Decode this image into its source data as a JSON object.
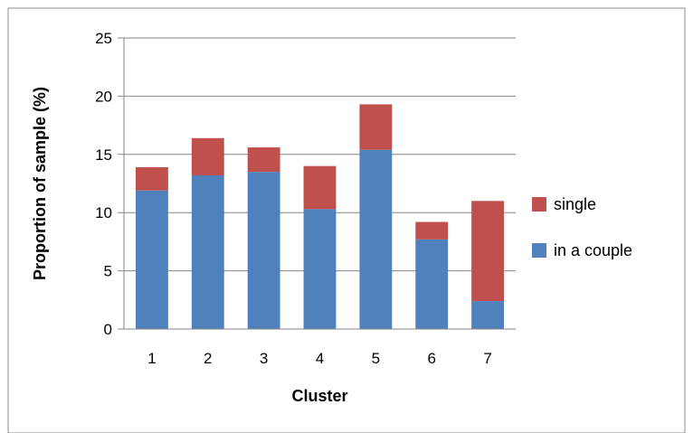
{
  "chart_data": {
    "type": "bar",
    "stacked": true,
    "title": "",
    "xlabel": "Cluster",
    "ylabel": "Proportion of sample (%)",
    "categories": [
      "1",
      "2",
      "3",
      "4",
      "5",
      "6",
      "7"
    ],
    "ylim": [
      0,
      25
    ],
    "yticks": [
      "0",
      "5",
      "10",
      "15",
      "20",
      "25"
    ],
    "grid": true,
    "legend_position": "right",
    "series": [
      {
        "name": "in a couple",
        "color": "#4f81bd",
        "values": [
          11.9,
          13.2,
          13.5,
          10.3,
          15.4,
          7.7,
          2.4
        ]
      },
      {
        "name": "single",
        "color": "#c0504d",
        "values": [
          2.0,
          3.2,
          2.1,
          3.7,
          3.9,
          1.5,
          8.6
        ]
      }
    ],
    "legend_order": [
      1,
      0
    ]
  }
}
